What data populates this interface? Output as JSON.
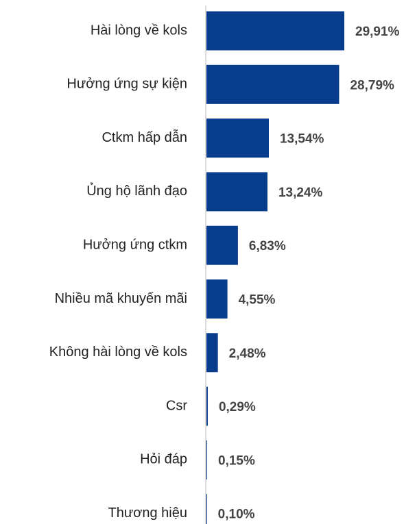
{
  "chart_data": {
    "type": "bar",
    "orientation": "horizontal",
    "color": "#083c8c",
    "categories": [
      "Hài lòng về kols",
      "Hưởng ứng sự kiện",
      "Ctkm hấp dẫn",
      "Ủng hộ lãnh đạo",
      "Hưởng ứng ctkm",
      "Nhiều mã khuyến mãi",
      "Không hài lòng về kols",
      "Csr",
      "Hỏi đáp",
      "Thương hiệu"
    ],
    "values": [
      29.91,
      28.79,
      13.54,
      13.24,
      6.83,
      4.55,
      2.48,
      0.29,
      0.15,
      0.1
    ],
    "value_labels": [
      "29,91%",
      "28,79%",
      "13,54%",
      "13,24%",
      "6,83%",
      "4,55%",
      "2,48%",
      "0,29%",
      "0,15%",
      "0,10%"
    ]
  }
}
